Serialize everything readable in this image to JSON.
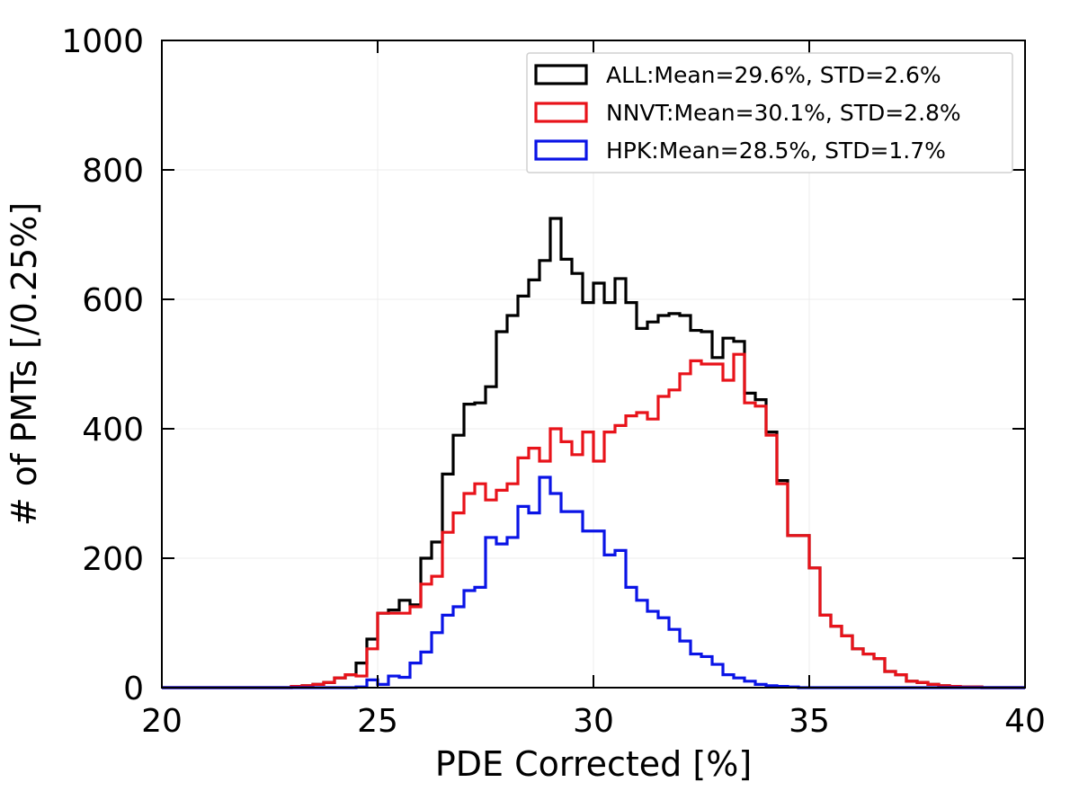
{
  "chart_data": {
    "type": "histogram",
    "title": "",
    "xlabel": "PDE Corrected [%]",
    "ylabel": "# of PMTs [/0.25%]",
    "xlim": [
      20,
      40
    ],
    "ylim": [
      0,
      1000
    ],
    "x_ticks": [
      "20",
      "25",
      "30",
      "35",
      "40"
    ],
    "y_ticks": [
      "0",
      "200",
      "400",
      "600",
      "800",
      "1000"
    ],
    "x_tick_values": [
      20,
      25,
      30,
      35,
      40
    ],
    "y_tick_values": [
      0,
      200,
      400,
      600,
      800,
      1000
    ],
    "grid": true,
    "legend_position": "top-right",
    "bin_width": 0.25,
    "x_start": 20,
    "series": [
      {
        "name": "ALL:Mean=29.6%, STD=2.6%",
        "color": "#000000",
        "values": [
          0,
          0,
          0,
          0,
          0,
          0,
          0,
          0,
          0,
          0,
          0,
          0,
          2,
          3,
          5,
          8,
          15,
          20,
          38,
          75,
          115,
          120,
          135,
          128,
          200,
          225,
          330,
          390,
          438,
          440,
          465,
          550,
          575,
          605,
          630,
          660,
          725,
          662,
          640,
          595,
          625,
          595,
          632,
          595,
          555,
          565,
          575,
          578,
          575,
          552,
          550,
          510,
          540,
          535,
          455,
          445,
          395,
          320,
          235,
          235,
          185,
          112,
          95,
          80,
          60,
          52,
          45,
          25,
          20,
          10,
          8,
          5,
          3,
          2,
          1,
          1,
          0,
          0,
          0,
          0
        ]
      },
      {
        "name": "NNVT:Mean=30.1%, STD=2.8%",
        "color": "#e8131a",
        "values": [
          0,
          0,
          0,
          0,
          0,
          0,
          0,
          0,
          0,
          0,
          0,
          0,
          2,
          3,
          5,
          8,
          15,
          20,
          18,
          60,
          115,
          115,
          115,
          125,
          160,
          172,
          240,
          270,
          300,
          315,
          290,
          305,
          315,
          355,
          370,
          350,
          400,
          380,
          360,
          395,
          350,
          395,
          405,
          420,
          425,
          415,
          450,
          460,
          485,
          505,
          500,
          500,
          475,
          515,
          440,
          435,
          390,
          315,
          235,
          235,
          185,
          112,
          95,
          80,
          60,
          52,
          45,
          25,
          20,
          10,
          8,
          5,
          3,
          2,
          1,
          1,
          0,
          0,
          0,
          0
        ]
      },
      {
        "name": "HPK:Mean=28.5%, STD=1.7%",
        "color": "#0a14e6",
        "values": [
          0,
          0,
          0,
          0,
          0,
          0,
          0,
          0,
          0,
          0,
          0,
          0,
          0,
          0,
          0,
          0,
          0,
          0,
          1,
          12,
          5,
          18,
          16,
          38,
          55,
          85,
          112,
          125,
          150,
          155,
          232,
          222,
          232,
          280,
          270,
          325,
          300,
          272,
          272,
          242,
          242,
          205,
          212,
          155,
          135,
          118,
          108,
          90,
          72,
          52,
          48,
          36,
          20,
          15,
          10,
          5,
          3,
          2,
          1,
          0,
          0,
          0,
          0,
          0,
          0,
          0,
          0,
          0,
          0,
          0,
          0,
          0,
          0,
          0,
          0,
          0,
          0,
          0,
          0,
          0
        ]
      }
    ]
  }
}
